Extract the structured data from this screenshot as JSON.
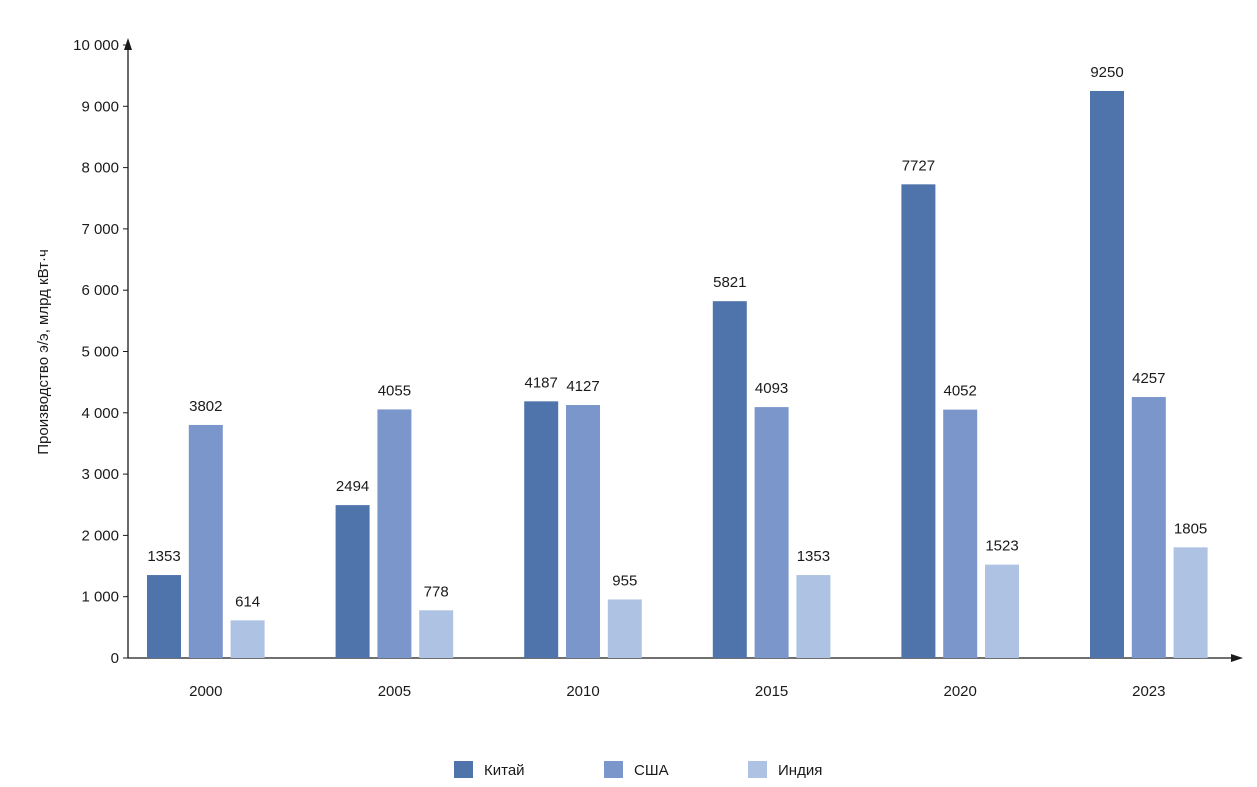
{
  "chart_data": {
    "type": "bar",
    "ylabel": "Производство э/э, млрд кВт·ч",
    "xlabel": "",
    "ylim": [
      0,
      10000
    ],
    "y_ticks": [
      0,
      1000,
      2000,
      3000,
      4000,
      5000,
      6000,
      7000,
      8000,
      9000,
      10000
    ],
    "y_tick_labels": [
      "0",
      "1 000",
      "2 000",
      "3 000",
      "4 000",
      "5 000",
      "6 000",
      "7 000",
      "8 000",
      "9 000",
      "10 000"
    ],
    "categories": [
      "2000",
      "2005",
      "2010",
      "2015",
      "2020",
      "2023"
    ],
    "series": [
      {
        "name": "Китай",
        "color": "#4f74ab",
        "values": [
          1353,
          2494,
          4187,
          5821,
          7727,
          9250
        ]
      },
      {
        "name": "США",
        "color": "#7b96cb",
        "values": [
          3802,
          4055,
          4127,
          4093,
          4052,
          4257
        ]
      },
      {
        "name": "Индия",
        "color": "#aec3e3",
        "values": [
          614,
          778,
          955,
          1353,
          1523,
          1805
        ]
      }
    ],
    "grid": false,
    "legend_position": "bottom"
  }
}
